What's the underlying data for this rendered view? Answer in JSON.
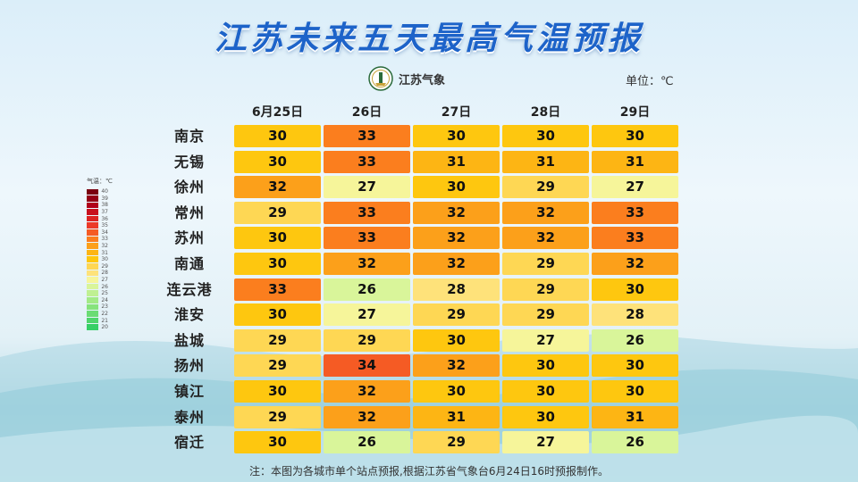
{
  "title": "江苏未来五天最高气温预报",
  "logo_text": "江苏气象",
  "unit": "单位：℃",
  "footnote": "注：本图为各城市单个站点预报,根据江苏省气象台6月24日16时预报制作。",
  "legend": {
    "title": "气温：℃",
    "levels": [
      {
        "v": "40",
        "color": "#7a0010"
      },
      {
        "v": "39",
        "color": "#940015"
      },
      {
        "v": "38",
        "color": "#b0001a"
      },
      {
        "v": "37",
        "color": "#c8101e"
      },
      {
        "v": "36",
        "color": "#dc2323"
      },
      {
        "v": "35",
        "color": "#ec3a28"
      },
      {
        "v": "34",
        "color": "#f55b24"
      },
      {
        "v": "33",
        "color": "#fb7e1e"
      },
      {
        "v": "32",
        "color": "#fca01a"
      },
      {
        "v": "31",
        "color": "#fdb514"
      },
      {
        "v": "30",
        "color": "#fec70f"
      },
      {
        "v": "29",
        "color": "#fed754"
      },
      {
        "v": "28",
        "color": "#fee27a"
      },
      {
        "v": "27",
        "color": "#f6f59a"
      },
      {
        "v": "26",
        "color": "#d9f59a"
      },
      {
        "v": "25",
        "color": "#bff092"
      },
      {
        "v": "24",
        "color": "#a2ea86"
      },
      {
        "v": "23",
        "color": "#86e37c"
      },
      {
        "v": "22",
        "color": "#6adc74"
      },
      {
        "v": "21",
        "color": "#4fd56c"
      },
      {
        "v": "20",
        "color": "#36cf66"
      }
    ]
  },
  "chart_data": {
    "type": "heatmap",
    "title": "江苏未来五天最高气温预报",
    "unit": "℃",
    "columns": [
      "6月25日",
      "26日",
      "27日",
      "28日",
      "29日"
    ],
    "rows": [
      "南京",
      "无锡",
      "徐州",
      "常州",
      "苏州",
      "南通",
      "连云港",
      "淮安",
      "盐城",
      "扬州",
      "镇江",
      "泰州",
      "宿迁"
    ],
    "values": [
      [
        30,
        33,
        30,
        30,
        30
      ],
      [
        30,
        33,
        31,
        31,
        31
      ],
      [
        32,
        27,
        30,
        29,
        27
      ],
      [
        29,
        33,
        32,
        32,
        33
      ],
      [
        30,
        33,
        32,
        32,
        33
      ],
      [
        30,
        32,
        32,
        29,
        32
      ],
      [
        33,
        26,
        28,
        29,
        30
      ],
      [
        30,
        27,
        29,
        29,
        28
      ],
      [
        29,
        29,
        30,
        27,
        26
      ],
      [
        29,
        34,
        32,
        30,
        30
      ],
      [
        30,
        32,
        30,
        30,
        30
      ],
      [
        29,
        32,
        31,
        30,
        31
      ],
      [
        30,
        26,
        29,
        27,
        26
      ]
    ]
  }
}
